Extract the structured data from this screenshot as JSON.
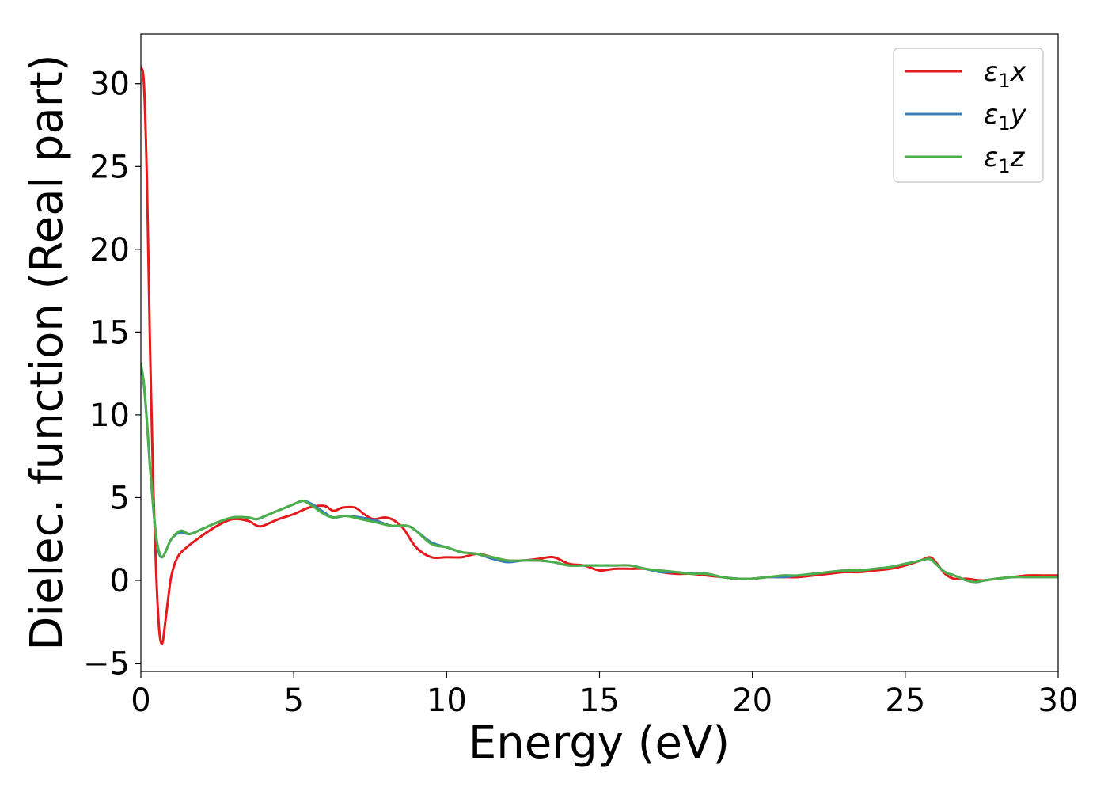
{
  "chart_data": {
    "type": "line",
    "xlabel": "Energy (eV)",
    "ylabel": "Dielec. function (Real part)",
    "xlim": [
      0,
      30
    ],
    "ylim": [
      -5.5,
      33
    ],
    "xticks": [
      0,
      5,
      10,
      15,
      20,
      25,
      30
    ],
    "yticks": [
      -5,
      0,
      5,
      10,
      15,
      20,
      25,
      30
    ],
    "xtick_labels": [
      "0",
      "5",
      "10",
      "15",
      "20",
      "25",
      "30"
    ],
    "ytick_labels": [
      "−5",
      "0",
      "5",
      "10",
      "15",
      "20",
      "25",
      "30"
    ],
    "grid": false,
    "legend_position": "top-right",
    "series": [
      {
        "name": "ε₁x",
        "legend_base": "ε",
        "legend_sub": "1",
        "legend_suffix": "x",
        "color": "#e41a1c",
        "x": [
          0.0,
          0.1,
          0.2,
          0.3,
          0.4,
          0.5,
          0.6,
          0.7,
          0.8,
          0.9,
          1.0,
          1.2,
          1.5,
          2.0,
          2.5,
          3.0,
          3.5,
          3.8,
          4.0,
          4.5,
          5.0,
          5.5,
          6.0,
          6.3,
          6.6,
          7.0,
          7.3,
          7.6,
          8.0,
          8.3,
          8.6,
          9.0,
          9.5,
          10.0,
          10.5,
          11.0,
          11.5,
          12.0,
          12.5,
          13.0,
          13.5,
          14.0,
          14.5,
          15.0,
          15.5,
          16.0,
          16.5,
          17.0,
          17.5,
          18.0,
          18.5,
          19.0,
          19.5,
          20.0,
          20.5,
          21.0,
          21.5,
          22.0,
          22.5,
          23.0,
          23.5,
          24.0,
          24.5,
          25.0,
          25.5,
          25.8,
          26.0,
          26.3,
          26.6,
          27.0,
          27.5,
          28.0,
          28.5,
          29.0,
          29.5,
          30.0
        ],
        "y": [
          31.0,
          30.0,
          24.0,
          14.0,
          6.0,
          0.5,
          -3.0,
          -3.8,
          -2.5,
          -1.0,
          0.3,
          1.4,
          2.0,
          2.7,
          3.3,
          3.7,
          3.6,
          3.3,
          3.3,
          3.7,
          4.0,
          4.4,
          4.5,
          4.2,
          4.4,
          4.4,
          4.0,
          3.7,
          3.8,
          3.6,
          3.1,
          2.0,
          1.4,
          1.4,
          1.4,
          1.6,
          1.4,
          1.2,
          1.2,
          1.3,
          1.4,
          1.0,
          0.9,
          0.6,
          0.7,
          0.7,
          0.7,
          0.5,
          0.4,
          0.4,
          0.3,
          0.2,
          0.1,
          0.1,
          0.2,
          0.2,
          0.2,
          0.3,
          0.4,
          0.5,
          0.5,
          0.6,
          0.7,
          0.9,
          1.2,
          1.4,
          1.1,
          0.4,
          0.1,
          0.1,
          0.0,
          0.1,
          0.2,
          0.3,
          0.3,
          0.3
        ]
      },
      {
        "name": "ε₁y",
        "legend_base": "ε",
        "legend_sub": "1",
        "legend_suffix": "y",
        "color": "#377eb8",
        "x": [
          0.0,
          0.1,
          0.2,
          0.3,
          0.4,
          0.5,
          0.6,
          0.7,
          0.8,
          1.0,
          1.3,
          1.6,
          2.0,
          2.5,
          3.0,
          3.5,
          3.8,
          4.2,
          4.6,
          5.0,
          5.3,
          5.6,
          6.0,
          6.3,
          6.7,
          7.2,
          7.7,
          8.2,
          8.7,
          9.0,
          9.5,
          10.0,
          10.5,
          11.0,
          11.5,
          12.0,
          12.5,
          13.0,
          13.5,
          14.0,
          14.5,
          15.0,
          15.5,
          16.0,
          16.5,
          17.0,
          17.5,
          18.0,
          18.5,
          19.0,
          19.5,
          20.0,
          20.5,
          21.0,
          21.5,
          22.0,
          22.5,
          23.0,
          23.5,
          24.0,
          24.5,
          25.0,
          25.5,
          25.8,
          26.0,
          26.3,
          26.6,
          27.0,
          27.3,
          27.6,
          28.0,
          28.5,
          29.0,
          29.5,
          30.0
        ],
        "y": [
          13.0,
          11.8,
          9.5,
          6.8,
          4.5,
          2.6,
          1.6,
          1.4,
          1.7,
          2.5,
          2.9,
          2.8,
          3.1,
          3.5,
          3.8,
          3.8,
          3.7,
          4.0,
          4.3,
          4.6,
          4.8,
          4.6,
          4.1,
          3.8,
          3.9,
          3.8,
          3.6,
          3.3,
          3.3,
          3.0,
          2.3,
          2.0,
          1.7,
          1.6,
          1.3,
          1.1,
          1.2,
          1.2,
          1.1,
          0.9,
          0.9,
          0.9,
          0.9,
          0.9,
          0.7,
          0.5,
          0.5,
          0.4,
          0.4,
          0.2,
          0.1,
          0.1,
          0.2,
          0.2,
          0.3,
          0.4,
          0.5,
          0.6,
          0.6,
          0.7,
          0.8,
          1.0,
          1.2,
          1.3,
          1.0,
          0.5,
          0.3,
          0.0,
          -0.1,
          0.0,
          0.1,
          0.2,
          0.2,
          0.2,
          0.2
        ]
      },
      {
        "name": "ε₁z",
        "legend_base": "ε",
        "legend_sub": "1",
        "legend_suffix": "z",
        "color": "#4daf4a",
        "x": [
          0.0,
          0.1,
          0.2,
          0.3,
          0.4,
          0.5,
          0.6,
          0.7,
          0.8,
          1.0,
          1.3,
          1.6,
          2.0,
          2.5,
          3.0,
          3.5,
          3.8,
          4.2,
          4.6,
          5.0,
          5.3,
          5.6,
          6.0,
          6.3,
          6.7,
          7.2,
          7.7,
          8.2,
          8.7,
          9.0,
          9.5,
          10.0,
          10.5,
          11.0,
          11.5,
          12.0,
          12.5,
          13.0,
          13.5,
          14.0,
          14.5,
          15.0,
          15.5,
          16.0,
          16.5,
          17.0,
          17.5,
          18.0,
          18.5,
          19.0,
          19.5,
          20.0,
          20.5,
          21.0,
          21.5,
          22.0,
          22.5,
          23.0,
          23.5,
          24.0,
          24.5,
          25.0,
          25.5,
          25.8,
          26.0,
          26.3,
          26.6,
          27.0,
          27.3,
          27.6,
          28.0,
          28.5,
          29.0,
          29.5,
          30.0
        ],
        "y": [
          13.1,
          11.9,
          9.6,
          6.9,
          4.6,
          2.7,
          1.7,
          1.4,
          1.7,
          2.5,
          3.0,
          2.8,
          3.1,
          3.5,
          3.8,
          3.8,
          3.7,
          4.0,
          4.3,
          4.6,
          4.8,
          4.5,
          4.0,
          3.8,
          3.9,
          3.7,
          3.5,
          3.3,
          3.3,
          3.0,
          2.2,
          2.0,
          1.7,
          1.6,
          1.4,
          1.2,
          1.2,
          1.2,
          1.1,
          0.9,
          0.9,
          0.9,
          0.9,
          0.9,
          0.7,
          0.6,
          0.5,
          0.4,
          0.4,
          0.2,
          0.1,
          0.1,
          0.2,
          0.3,
          0.3,
          0.4,
          0.5,
          0.6,
          0.6,
          0.7,
          0.8,
          1.0,
          1.2,
          1.3,
          1.0,
          0.5,
          0.3,
          0.0,
          -0.1,
          0.0,
          0.1,
          0.2,
          0.2,
          0.2,
          0.2
        ]
      }
    ]
  }
}
